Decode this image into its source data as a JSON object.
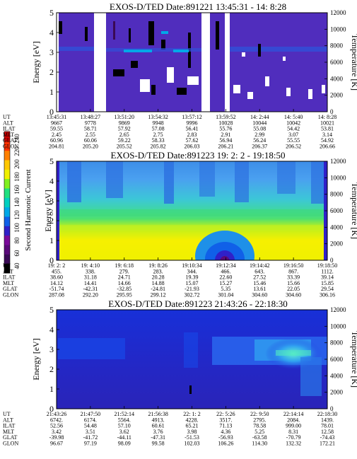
{
  "colorbar": {
    "label": "Second Harmonic Current",
    "ticks": [
      "40",
      "60",
      "80",
      "100",
      "120",
      "140",
      "160",
      "180",
      "200",
      "220",
      "240"
    ],
    "colors": [
      "#000000",
      "#3a0a55",
      "#5a0a7a",
      "#7a0a9a",
      "#3020c8",
      "#1060e8",
      "#00a8e8",
      "#00d0c0",
      "#20e080",
      "#80f020",
      "#f0f000",
      "#ffc800",
      "#ff8000",
      "#ff3000",
      "#d00000"
    ]
  },
  "chart_data": [
    {
      "type": "heatmap",
      "title": "EXOS-D/TED   Date:891221  13:45:31 - 14: 8:28",
      "ylabel": "Energy [eV]",
      "y2label": "Temperature [K]",
      "ylim": [
        0,
        5
      ],
      "y2lim": [
        0,
        12000
      ],
      "yticks": [
        "0",
        "1",
        "2",
        "3",
        "4",
        "5"
      ],
      "y2ticks": [
        "0",
        "2000",
        "4000",
        "6000",
        "8000",
        "10000",
        "12000"
      ],
      "row_labels": [
        "UT",
        "ALT",
        "ILAT",
        "MLT",
        "GLAT",
        "GLON"
      ],
      "columns": [
        [
          "13:45:31",
          "9667",
          "59.55",
          "2.45",
          "60.96",
          "204.81"
        ],
        [
          "13:48:27",
          "9778",
          "58.71",
          "2.55",
          "60.06",
          "205.20"
        ],
        [
          "13:51:20",
          "9869",
          "57.92",
          "2.65",
          "59.22",
          "205.52"
        ],
        [
          "13:54:32",
          "9948",
          "57.08",
          "2.75",
          "58.33",
          "205.82"
        ],
        [
          "13:57:12",
          "9996",
          "56.41",
          "2.83",
          "57.62",
          "206.03"
        ],
        [
          "13:59:52",
          "10028",
          "55.76",
          "2.91",
          "56.94",
          "206.21"
        ],
        [
          "14: 2:44",
          "10044",
          "55.08",
          "2.99",
          "56.24",
          "206.37"
        ],
        [
          "14: 5:40",
          "10042",
          "54.42",
          "3.07",
          "55.55",
          "206.52"
        ],
        [
          "14: 8:28",
          "10021",
          "53.81",
          "3.14",
          "54.92",
          "206.66"
        ]
      ]
    },
    {
      "type": "heatmap",
      "title": "EXOS-D/TED   Date:891223  19: 2: 2 - 19:18:50",
      "ylabel": "Energy [eV]",
      "y2label": "Temperature [K]",
      "ylim": [
        0,
        5
      ],
      "y2lim": [
        0,
        12000
      ],
      "yticks": [
        "0",
        "1",
        "2",
        "3",
        "4",
        "5"
      ],
      "y2ticks": [
        "0",
        "2000",
        "4000",
        "6000",
        "8000",
        "10000",
        "12000"
      ],
      "row_labels": [
        "UT",
        "ALT",
        "ILAT",
        "MLT",
        "GLAT",
        "GLON"
      ],
      "columns": [
        [
          "19: 2: 2",
          "455.",
          "38.60",
          "14.12",
          "-51.74",
          "287.08"
        ],
        [
          "19: 4:10",
          "338.",
          "31.18",
          "14.41",
          "-42.31",
          "292.20"
        ],
        [
          "19: 6:18",
          "279.",
          "24.71",
          "14.66",
          "-32.85",
          "295.95"
        ],
        [
          "19: 8:26",
          "283.",
          "20.28",
          "14.88",
          "-24.81",
          "299.12"
        ],
        [
          "19:10:34",
          "344.",
          "19.39",
          "15.07",
          "-21.93",
          "302.72"
        ],
        [
          "19:12:34",
          "466.",
          "22.60",
          "15.27",
          "5.35",
          "301.04"
        ],
        [
          "19:14:42",
          "643.",
          "27.52",
          "15.46",
          "13.61",
          "304.60"
        ],
        [
          "19:16:50",
          "867.",
          "33.39",
          "15.66",
          "22.05",
          "304.60"
        ],
        [
          "19:18:50",
          "1112.",
          "39.14",
          "15.85",
          "29.54",
          "306.16"
        ]
      ]
    },
    {
      "type": "heatmap",
      "title": "EXOS-D/TED   Date:891223  21:43:26 - 22:18:30",
      "ylabel": "Energy [eV]",
      "y2label": "Temperature [K]",
      "ylim": [
        0,
        5
      ],
      "y2lim": [
        0,
        12000
      ],
      "yticks": [
        "0",
        "1",
        "2",
        "3",
        "4",
        "5"
      ],
      "y2ticks": [
        "0",
        "2000",
        "4000",
        "6000",
        "8000",
        "10000",
        "12000"
      ],
      "row_labels": [
        "UT",
        "ALT",
        "ILAT",
        "MLT",
        "GLAT",
        "GLON"
      ],
      "columns": [
        [
          "21:43:26",
          "6742.",
          "52.56",
          "3.42",
          "-39.98",
          "96.67"
        ],
        [
          "21:47:50",
          "6174.",
          "54.48",
          "3.51",
          "-41.72",
          "97.19"
        ],
        [
          "21:52:14",
          "5564.",
          "57.10",
          "3.62",
          "-44.11",
          "98.09"
        ],
        [
          "21:56:38",
          "4913.",
          "60.61",
          "3.76",
          "-47.31",
          "99.58"
        ],
        [
          "22: 1: 2",
          "4228.",
          "65.21",
          "3.98",
          "-51.53",
          "102.03"
        ],
        [
          "22: 5:26",
          "3517.",
          "71.13",
          "4.36",
          "-56.93",
          "106.26"
        ],
        [
          "22: 9:50",
          "2795.",
          "78.58",
          "5.25",
          "-63.58",
          "114.30"
        ],
        [
          "22:14:14",
          "2084.",
          "999.00",
          "8.31",
          "-70.79",
          "132.32"
        ],
        [
          "22:18:30",
          "1439.",
          "78.01",
          "12.58",
          "-74.43",
          "172.21"
        ]
      ]
    }
  ]
}
